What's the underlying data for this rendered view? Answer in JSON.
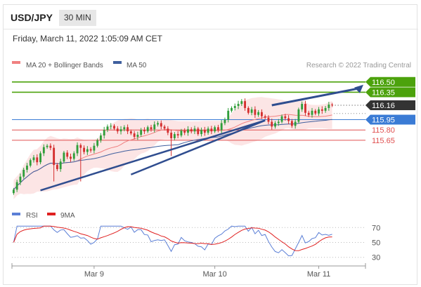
{
  "header": {
    "pair": "USD/JPY",
    "timeframe": "30 MIN"
  },
  "datetime": "Friday, March 11, 2022 1:05:09 AM CET",
  "legend": {
    "ma20_label": "MA 20 + Bollinger Bands",
    "ma50_label": "MA 50",
    "credit": "Research © 2022 Trading Central"
  },
  "rsi_legend": {
    "rsi_label": "RSI",
    "ma_label": "9MA"
  },
  "colors": {
    "ma20": "#f08080",
    "ma50": "#3f5f9e",
    "resistance": "#4ca20c",
    "support": "#e05050",
    "pivot": "#3a7bd5",
    "current": "#333333",
    "trend": "#2f4d8f",
    "up_candle": "#2f9e3a",
    "down_candle": "#d42e2e",
    "rsi": "#5b7fd6",
    "rsi_ma": "#e02020"
  },
  "chart_data": [
    {
      "type": "candlestick",
      "title": "USD/JPY",
      "subtitle": "30 MIN",
      "ylim": [
        114.8,
        116.6
      ],
      "x_labels": [
        "Mar 9",
        "Mar 10",
        "Mar 11"
      ],
      "candle_count": 96,
      "close_series": [
        114.93,
        115.04,
        115.12,
        115.22,
        115.28,
        115.36,
        115.4,
        115.33,
        115.46,
        115.55,
        115.57,
        115.54,
        115.29,
        115.23,
        115.34,
        115.47,
        115.41,
        115.38,
        115.46,
        115.58,
        115.54,
        115.48,
        115.52,
        115.5,
        115.57,
        115.65,
        115.72,
        115.8,
        115.85,
        115.86,
        115.82,
        115.78,
        115.81,
        115.84,
        115.78,
        115.75,
        115.7,
        115.73,
        115.8,
        115.78,
        115.84,
        115.81,
        115.88,
        115.9,
        115.85,
        115.82,
        115.76,
        115.68,
        115.74,
        115.72,
        115.79,
        115.76,
        115.81,
        115.78,
        115.82,
        115.74,
        115.8,
        115.76,
        115.82,
        115.78,
        115.84,
        115.8,
        115.9,
        115.95,
        116.08,
        116.12,
        116.15,
        116.18,
        116.22,
        116.12,
        116.05,
        116.1,
        116.02,
        116.06,
        116.0,
        115.98,
        115.92,
        115.85,
        115.9,
        115.92,
        116.0,
        115.97,
        115.93,
        115.86,
        115.92,
        116.1,
        116.18,
        116.05,
        116.02,
        116.08,
        116.04,
        116.1,
        116.08,
        116.12,
        116.17,
        116.16
      ],
      "levels": [
        {
          "value": 116.5,
          "label": "116.50",
          "kind": "resistance"
        },
        {
          "value": 116.35,
          "label": "116.35",
          "kind": "resistance"
        },
        {
          "value": 116.16,
          "label": "116.16",
          "kind": "current"
        },
        {
          "value": 115.95,
          "label": "115.95",
          "kind": "pivot"
        },
        {
          "value": 115.8,
          "label": "115.80",
          "kind": "support"
        },
        {
          "value": 115.65,
          "label": "115.65",
          "kind": "support"
        }
      ],
      "trendlines": [
        {
          "from": [
            8,
            114.92
          ],
          "to": [
            75,
            115.94
          ]
        },
        {
          "from": [
            35,
            115.15
          ],
          "to": [
            75,
            115.94
          ]
        }
      ],
      "forecast_arrow": {
        "from": [
          77,
          116.16
        ],
        "to": [
          88,
          116.46
        ]
      },
      "legend": [
        "MA 20 + Bollinger Bands",
        "MA 50"
      ]
    },
    {
      "type": "line",
      "ylim": [
        25,
        75
      ],
      "y_ticks": [
        "70",
        "50",
        "30"
      ],
      "series": [
        {
          "name": "RSI"
        },
        {
          "name": "9MA"
        }
      ]
    }
  ]
}
